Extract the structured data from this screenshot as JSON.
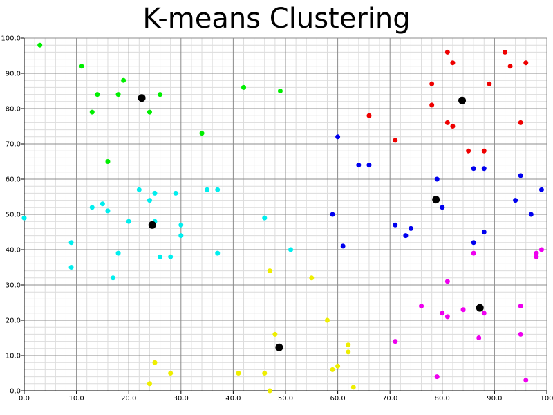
{
  "chart_data": {
    "type": "scatter",
    "title": "K-means Clustering",
    "xlabel": "",
    "ylabel": "",
    "xlim": [
      0,
      100
    ],
    "ylim": [
      0,
      100
    ],
    "x_ticks": [
      0,
      10,
      20,
      30,
      40,
      50,
      60,
      70,
      80,
      90,
      100
    ],
    "x_tick_labels": [
      "0.0",
      "10.0",
      "20.0",
      "30.0",
      "40.0",
      "50.0",
      "60.0",
      "70.0",
      "80.0",
      "90.0",
      "100"
    ],
    "y_ticks": [
      0,
      10,
      20,
      30,
      40,
      50,
      60,
      70,
      80,
      90,
      100
    ],
    "y_tick_labels": [
      "0.0",
      "10.0",
      "20.0",
      "30.0",
      "40.0",
      "50.0",
      "60.0",
      "70.0",
      "80.0",
      "90.0",
      "100.0"
    ],
    "grid": true,
    "minor_grid": true,
    "legend": false,
    "series": [
      {
        "color": "#00ee00",
        "points": [
          [
            3,
            98
          ],
          [
            11,
            92
          ],
          [
            14,
            84
          ],
          [
            13,
            79
          ],
          [
            18,
            84
          ],
          [
            19,
            88
          ],
          [
            16,
            65
          ],
          [
            24,
            79
          ],
          [
            26,
            84
          ],
          [
            34,
            73
          ],
          [
            42,
            86
          ],
          [
            49,
            85
          ]
        ]
      },
      {
        "color": "#00eeee",
        "points": [
          [
            0,
            49
          ],
          [
            9,
            42
          ],
          [
            9,
            35
          ],
          [
            13,
            52
          ],
          [
            15,
            53
          ],
          [
            16,
            51
          ],
          [
            17,
            32
          ],
          [
            18,
            39
          ],
          [
            20,
            48
          ],
          [
            22,
            57
          ],
          [
            24,
            54
          ],
          [
            25,
            56
          ],
          [
            25,
            48
          ],
          [
            26,
            38
          ],
          [
            28,
            38
          ],
          [
            29,
            56
          ],
          [
            30,
            47
          ],
          [
            30,
            44
          ],
          [
            35,
            57
          ],
          [
            37,
            57
          ],
          [
            37,
            39
          ],
          [
            46,
            49
          ],
          [
            51,
            40
          ]
        ]
      },
      {
        "color": "#eeee00",
        "points": [
          [
            47,
            34
          ],
          [
            55,
            32
          ],
          [
            48,
            16
          ],
          [
            58,
            20
          ],
          [
            62,
            13
          ],
          [
            62,
            11
          ],
          [
            60,
            7
          ],
          [
            59,
            6
          ],
          [
            63,
            1
          ],
          [
            47,
            0
          ],
          [
            46,
            5
          ],
          [
            41,
            5
          ],
          [
            28,
            5
          ],
          [
            25,
            8
          ],
          [
            24,
            2
          ]
        ]
      },
      {
        "color": "#0000ee",
        "points": [
          [
            60,
            72
          ],
          [
            64,
            64
          ],
          [
            66,
            64
          ],
          [
            59,
            50
          ],
          [
            61,
            41
          ],
          [
            71,
            47
          ],
          [
            73,
            44
          ],
          [
            74,
            46
          ],
          [
            79,
            60
          ],
          [
            80,
            52
          ],
          [
            86,
            63
          ],
          [
            88,
            63
          ],
          [
            86,
            42
          ],
          [
            88,
            45
          ],
          [
            94,
            54
          ],
          [
            95,
            61
          ],
          [
            97,
            50
          ],
          [
            99,
            57
          ]
        ]
      },
      {
        "color": "#ee0000",
        "points": [
          [
            66,
            78
          ],
          [
            71,
            71
          ],
          [
            78,
            87
          ],
          [
            78,
            81
          ],
          [
            81,
            96
          ],
          [
            81,
            76
          ],
          [
            82,
            93
          ],
          [
            82,
            75
          ],
          [
            85,
            68
          ],
          [
            88,
            68
          ],
          [
            89,
            87
          ],
          [
            92,
            96
          ],
          [
            93,
            92
          ],
          [
            95,
            76
          ],
          [
            96,
            93
          ]
        ]
      },
      {
        "color": "#ee00ee",
        "points": [
          [
            71,
            14
          ],
          [
            76,
            24
          ],
          [
            79,
            4
          ],
          [
            80,
            22
          ],
          [
            81,
            21
          ],
          [
            81,
            31
          ],
          [
            84,
            23
          ],
          [
            86,
            39
          ],
          [
            87,
            15
          ],
          [
            88,
            22
          ],
          [
            95,
            24
          ],
          [
            95,
            16
          ],
          [
            96,
            3
          ],
          [
            98,
            39
          ],
          [
            98,
            38
          ],
          [
            99,
            40
          ]
        ]
      }
    ],
    "centroids": {
      "color": "#000000",
      "points": [
        [
          22.5,
          83
        ],
        [
          24.5,
          47
        ],
        [
          48.8,
          12.3
        ],
        [
          83.8,
          82.3
        ],
        [
          78.8,
          54.2
        ],
        [
          87.2,
          23.5
        ]
      ]
    }
  }
}
